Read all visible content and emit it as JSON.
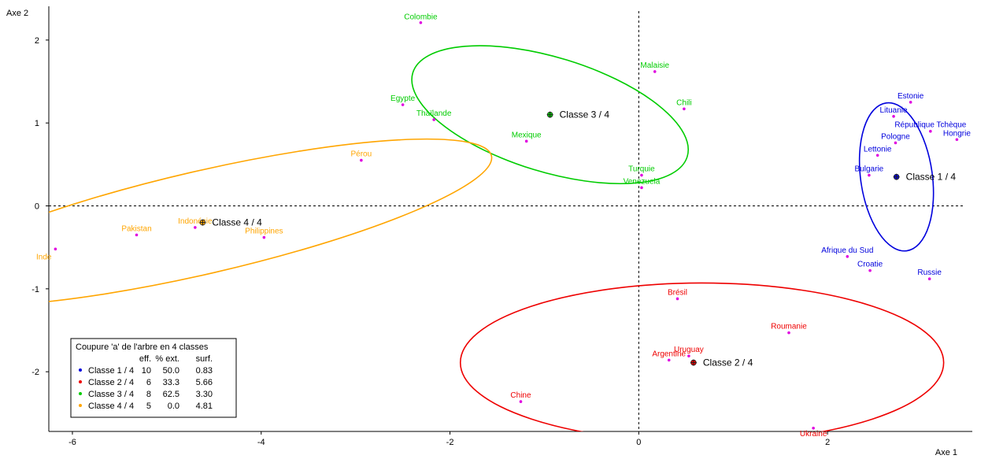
{
  "chart_data": {
    "type": "scatter",
    "title": "Coupure 'a' de l'arbre en  4 classes",
    "xlabel": "Axe 1",
    "ylabel": "Axe 2",
    "xlim": [
      -6.25,
      3.45
    ],
    "ylim": [
      -2.72,
      2.35
    ],
    "xticks": [
      -6,
      -4,
      -2,
      0,
      2
    ],
    "yticks": [
      -2,
      -1,
      0,
      1,
      2
    ],
    "xtick_labels": [
      "-6",
      "-4",
      "-2",
      "0",
      "2"
    ],
    "ytick_labels": [
      "-2",
      "-1",
      "0",
      "1",
      "2"
    ],
    "point_color": "#e000e0",
    "legend": {
      "title": "Coupure 'a' de l'arbre en  4 classes",
      "headers": [
        "eff.",
        "% ext.",
        "surf."
      ],
      "rows": [
        {
          "label": "Classe  1 / 4",
          "eff": "10",
          "ext": "50.0",
          "surf": "0.83",
          "color": "#0000dd"
        },
        {
          "label": "Classe  2 / 4",
          "eff": "6",
          "ext": "33.3",
          "surf": "5.66",
          "color": "#ee0000"
        },
        {
          "label": "Classe  3 / 4",
          "eff": "8",
          "ext": "62.5",
          "surf": "3.30",
          "color": "#00cc00"
        },
        {
          "label": "Classe  4 / 4",
          "eff": "5",
          "ext": "0.0",
          "surf": "4.81",
          "color": "#ffa500"
        }
      ]
    },
    "classes": [
      {
        "name": "Classe  1 / 4",
        "color": "#0000dd",
        "centroid": [
          2.73,
          0.35
        ],
        "ellipse": {
          "center": [
            2.73,
            0.35
          ],
          "rx": 0.38,
          "ry": 0.9,
          "angle_deg": 8
        },
        "points": [
          {
            "label": "Estonie",
            "x": 2.88,
            "y": 1.25
          },
          {
            "label": "Lituanie",
            "x": 2.7,
            "y": 1.08
          },
          {
            "label": "République Tchèque",
            "x": 3.09,
            "y": 0.9
          },
          {
            "label": "Hongrie",
            "x": 3.37,
            "y": 0.8
          },
          {
            "label": "Pologne",
            "x": 2.72,
            "y": 0.76
          },
          {
            "label": "Lettonie",
            "x": 2.53,
            "y": 0.61
          },
          {
            "label": "Bulgarie",
            "x": 2.44,
            "y": 0.37
          },
          {
            "label": "Afrique du Sud",
            "x": 2.21,
            "y": -0.61
          },
          {
            "label": "Croatie",
            "x": 2.45,
            "y": -0.78
          },
          {
            "label": "Russie",
            "x": 3.08,
            "y": -0.88
          }
        ]
      },
      {
        "name": "Classe  2 / 4",
        "color": "#ee0000",
        "centroid": [
          0.58,
          -1.89
        ],
        "ellipse": {
          "center": [
            0.67,
            -1.89
          ],
          "rx": 2.56,
          "ry": 0.96,
          "angle_deg": 0
        },
        "points": [
          {
            "label": "Brésil",
            "x": 0.41,
            "y": -1.12
          },
          {
            "label": "Roumanie",
            "x": 1.59,
            "y": -1.53
          },
          {
            "label": "Uruguay",
            "x": 0.53,
            "y": -1.81
          },
          {
            "label": "Argentine",
            "x": 0.32,
            "y": -1.86
          },
          {
            "label": "Chine",
            "x": -1.25,
            "y": -2.36
          },
          {
            "label": "Ukraine",
            "x": 1.85,
            "y": -2.68
          }
        ]
      },
      {
        "name": "Classe  3 / 4",
        "color": "#00cc00",
        "centroid": [
          -0.94,
          1.1
        ],
        "ellipse": {
          "center": [
            -0.94,
            1.1
          ],
          "rx": 1.52,
          "ry": 0.69,
          "angle_deg": -17
        },
        "points": [
          {
            "label": "Colombie",
            "x": -2.31,
            "y": 2.21
          },
          {
            "label": "Malaisie",
            "x": 0.17,
            "y": 1.62
          },
          {
            "label": "Egypte",
            "x": -2.5,
            "y": 1.22
          },
          {
            "label": "Chili",
            "x": 0.48,
            "y": 1.17
          },
          {
            "label": "Thaïlande",
            "x": -2.17,
            "y": 1.04
          },
          {
            "label": "Mexique",
            "x": -1.19,
            "y": 0.78
          },
          {
            "label": "Turquie",
            "x": 0.03,
            "y": 0.37
          },
          {
            "label": "Venezuela",
            "x": 0.03,
            "y": 0.22
          }
        ]
      },
      {
        "name": "Classe  4 / 4",
        "color": "#ffa500",
        "centroid": [
          -4.62,
          -0.2
        ],
        "ellipse": {
          "center": [
            -4.62,
            -0.2
          ],
          "rx": 3.14,
          "ry": 0.62,
          "angle_deg": 13
        },
        "points": [
          {
            "label": "Pérou",
            "x": -2.94,
            "y": 0.55
          },
          {
            "label": "Indonésie",
            "x": -4.7,
            "y": -0.26
          },
          {
            "label": "Pakistan",
            "x": -5.32,
            "y": -0.35
          },
          {
            "label": "Philippines",
            "x": -3.97,
            "y": -0.38
          },
          {
            "label": "Inde",
            "x": -6.18,
            "y": -0.52
          }
        ]
      }
    ]
  }
}
